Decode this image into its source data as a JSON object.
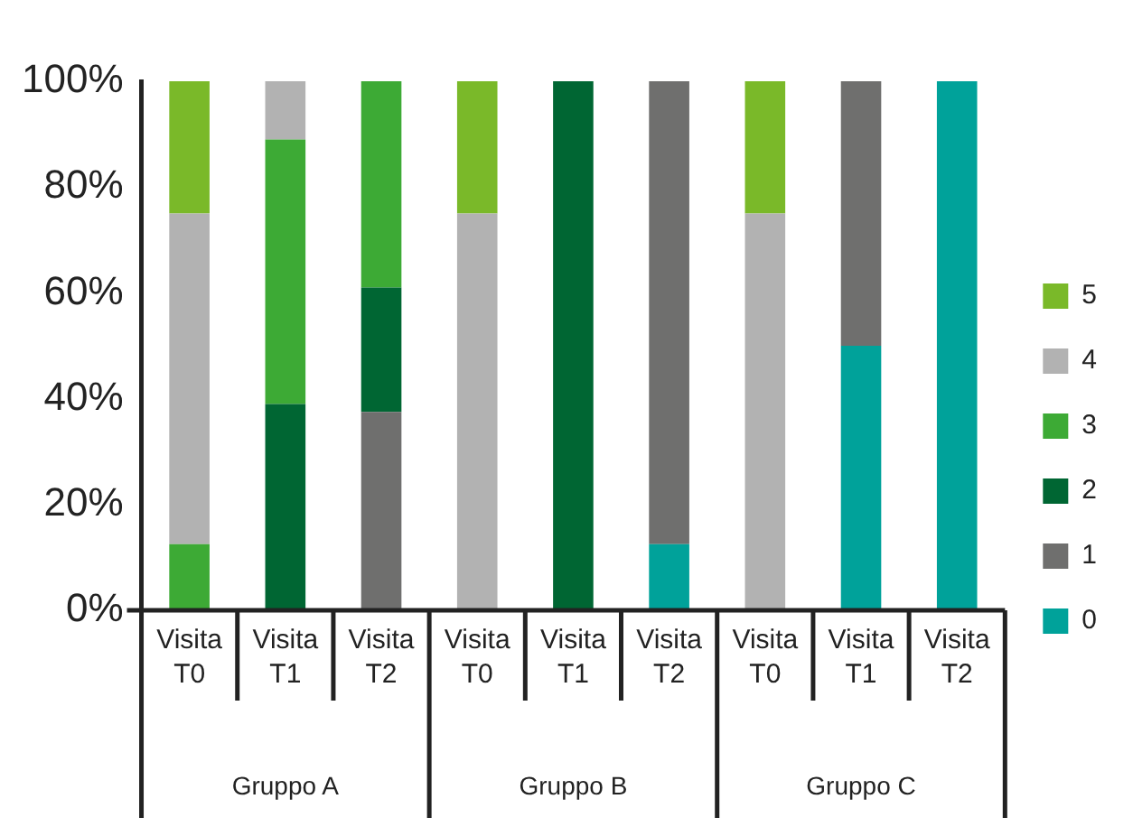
{
  "chart_data": {
    "type": "bar",
    "stacked": true,
    "legend": "right",
    "categories": [
      "Visita T0",
      "Visita T1",
      "Visita T2",
      "Visita T0",
      "Visita T1",
      "Visita T2",
      "Visita T0",
      "Visita T1",
      "Visita T2"
    ],
    "annotations": [
      "Gruppo A",
      "Gruppo B",
      "Gruppo C"
    ],
    "series": [
      {
        "name": "0",
        "color": "#00a29a",
        "values": [
          null,
          null,
          null,
          null,
          null,
          12.5,
          null,
          50,
          100
        ]
      },
      {
        "name": "1",
        "color": "#6f6f6e",
        "values": [
          null,
          null,
          37.5,
          null,
          null,
          87.5,
          null,
          50,
          null
        ]
      },
      {
        "name": "2",
        "color": "#006633",
        "values": [
          null,
          39,
          23.5,
          null,
          100,
          null,
          null,
          null,
          null
        ]
      },
      {
        "name": "3",
        "color": "#3daa35",
        "values": [
          12.5,
          50,
          39,
          null,
          null,
          null,
          null,
          null,
          null
        ]
      },
      {
        "name": "4",
        "color": "#b2b2b2",
        "values": [
          62.5,
          11,
          null,
          75,
          null,
          null,
          75,
          null,
          null
        ]
      },
      {
        "name": "5",
        "color": "#7ab929",
        "values": [
          25,
          null,
          null,
          25,
          null,
          null,
          25,
          null,
          null
        ]
      }
    ],
    "ylim": [
      0,
      100
    ],
    "yticks": [
      {
        "value": 0,
        "label": "0%"
      },
      {
        "value": 20,
        "label": "20%"
      },
      {
        "value": 40,
        "label": "40%"
      },
      {
        "value": 60,
        "label": "60%"
      },
      {
        "value": 80,
        "label": "80%"
      },
      {
        "value": 100,
        "label": "100%"
      }
    ]
  }
}
